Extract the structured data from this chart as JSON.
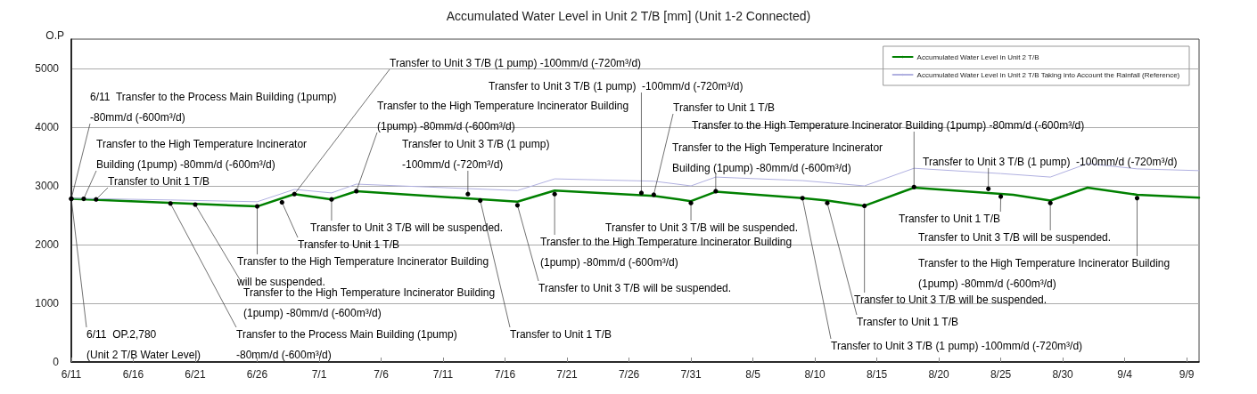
{
  "chart_data": {
    "type": "line",
    "title": "Accumulated Water Level in Unit 2 T/B [mm] (Unit 1-2 Connected)",
    "ylabel": "O.P",
    "series": [
      {
        "name": "Accumulated Water Level in Unit 2 T/B",
        "color": "#008000",
        "x": [
          "--06-11",
          "--06-26",
          "--06-29",
          "--07-02",
          "--07-04",
          "--07-17",
          "--07-20",
          "--07-28",
          "--07-31",
          "--08-02",
          "--08-09",
          "--08-11",
          "--08-14",
          "--08-18",
          "--08-26",
          "--08-29",
          "--09-01",
          "--09-05",
          "--09-10"
        ],
        "values": [
          2780,
          2650,
          2860,
          2770,
          2910,
          2730,
          2920,
          2830,
          2740,
          2900,
          2790,
          2750,
          2660,
          2970,
          2850,
          2750,
          2970,
          2850,
          2800
        ]
      },
      {
        "name": "Accumulated Water Level in Unit 2 T/B Taking into Account the Rainfall (Reference)",
        "color": "#b0b0e0",
        "x": [
          "--06-11",
          "--06-19",
          "--06-26",
          "--06-29",
          "--07-02",
          "--07-04",
          "--07-17",
          "--07-20",
          "--07-28",
          "--07-31",
          "--08-02",
          "--08-09",
          "--08-14",
          "--08-18",
          "--08-25",
          "--08-29",
          "--09-01",
          "--09-05",
          "--09-10"
        ],
        "values": [
          2790,
          2760,
          2730,
          2940,
          2880,
          3030,
          2920,
          3120,
          3080,
          3000,
          3150,
          3090,
          3000,
          3300,
          3210,
          3150,
          3380,
          3290,
          3260
        ]
      }
    ],
    "xlim": [
      "--06-11",
      "--09-10"
    ],
    "xticks": [
      {
        "value": "--06-11",
        "label": "6/11"
      },
      {
        "value": "--06-16",
        "label": "6/16"
      },
      {
        "value": "--06-21",
        "label": "6/21"
      },
      {
        "value": "--06-26",
        "label": "6/26"
      },
      {
        "value": "--07-01",
        "label": "7/1"
      },
      {
        "value": "--07-06",
        "label": "7/6"
      },
      {
        "value": "--07-11",
        "label": "7/11"
      },
      {
        "value": "--07-16",
        "label": "7/16"
      },
      {
        "value": "--07-21",
        "label": "7/21"
      },
      {
        "value": "--07-26",
        "label": "7/26"
      },
      {
        "value": "--07-31",
        "label": "7/31"
      },
      {
        "value": "--08-05",
        "label": "8/5"
      },
      {
        "value": "--08-10",
        "label": "8/10"
      },
      {
        "value": "--08-15",
        "label": "8/15"
      },
      {
        "value": "--08-20",
        "label": "8/20"
      },
      {
        "value": "--08-25",
        "label": "8/25"
      },
      {
        "value": "--08-30",
        "label": "8/30"
      },
      {
        "value": "--09-04",
        "label": "9/4"
      },
      {
        "value": "--09-09",
        "label": "9/9"
      }
    ],
    "ylim": [
      0,
      5500
    ],
    "yticks": [
      0,
      1000,
      2000,
      3000,
      4000,
      5000
    ],
    "grid": "y",
    "legend": "top right",
    "marker": "none",
    "line_style": "solid",
    "annotations": [
      {
        "text": "Transfer to Unit 3 T/B (1 pump)\n-100mm/d (-720m³/d)",
        "x": "--07-13",
        "y": 2860
      },
      {
        "text": "Transfer to Unit 3 T/B (1 pump)  -100mm/d (-720m³/d)",
        "x": "--08-24",
        "y": 2950
      },
      {
        "text": "Transfer to Unit 3 T/B (1 pump)  -100mm/d (-720m³/d)",
        "x": "--07-27",
        "y": 2880
      },
      {
        "text": "Transfer to Unit 3 T/B (1 pump) -100mm/d (-720m³/d)",
        "x": "--06-29",
        "y": 2860
      },
      {
        "text": "Transfer to Unit 3 T/B (1 pump) -100mm/d (-720m³/d)",
        "x": "--08-09",
        "y": 2790
      },
      {
        "text": "Transfer to Unit 1 T/B",
        "x": "--06-13",
        "y": 2770
      },
      {
        "text": "Transfer to Unit 1 T/B",
        "x": "--06-28",
        "y": 2720
      },
      {
        "text": "Transfer to Unit 1 T/B",
        "x": "--08-25",
        "y": 2820
      },
      {
        "text": "Transfer to Unit 1 T/B",
        "x": "--07-28",
        "y": 2850
      },
      {
        "text": "Transfer to Unit 1 T/B",
        "x": "--08-11",
        "y": 2710
      },
      {
        "text": "Transfer to Unit 1 T/B",
        "x": "--07-14",
        "y": 2750
      },
      {
        "text": "Transfer to Unit 3 T/B will be suspended.",
        "x": "--07-02",
        "y": 2770
      },
      {
        "text": "Transfer to Unit 3 T/B will be suspended.",
        "x": "--07-31",
        "y": 2710
      },
      {
        "text": "Transfer to Unit 3 T/B will be suspended.",
        "x": "--08-29",
        "y": 2710
      },
      {
        "text": "Transfer to Unit 3 T/B will be suspended.",
        "x": "--07-17",
        "y": 2670
      },
      {
        "text": "Transfer to Unit 3 T/B will be suspended.",
        "x": "--08-14",
        "y": 2660
      },
      {
        "text": "Transfer to the High Temperature Incinerator\nBuilding (1pump) -80mm/d (-600m³/d)",
        "x": "--06-12",
        "y": 2780
      },
      {
        "text": "Transfer to the High Temperature Incinerator\nBuilding (1pump) -80mm/d (-600m³/d)",
        "x": "--08-02",
        "y": 2910
      },
      {
        "text": "Transfer to the High Temperature Incinerator Building\n(1pump) -80mm/d (-600m³/d)",
        "x": "--07-04",
        "y": 2910
      },
      {
        "text": "Transfer to the High Temperature Incinerator Building\n(1pump) -80mm/d (-600m³/d)",
        "x": "--07-20",
        "y": 2860
      },
      {
        "text": "Transfer to the High Temperature Incinerator Building (1pump) -80mm/d (-600m³/d)",
        "x": "--08-18",
        "y": 2980
      },
      {
        "text": "Transfer to the High Temperature Incinerator Building\n(1pump) -80mm/d (-600m³/d)",
        "x": "--09-05",
        "y": 2790
      },
      {
        "text": "Transfer to the High Temperature Incinerator Building\n(1pump) -80mm/d (-600m³/d)",
        "x": "--06-21",
        "y": 2680
      },
      {
        "text": "6/11  OP.2,780\n(Unit 2 T/B Water Level)",
        "x": "--06-11",
        "y": 2780
      },
      {
        "text": "6/11  Transfer to the Process Main Building (1pump)\n-80mm/d (-600m³/d)",
        "x": "--06-11",
        "y": 2780
      },
      {
        "text": "Transfer to the Process Main Building (1pump)\n-80mm/d (-600m³/d)",
        "x": "--06-19",
        "y": 2700
      },
      {
        "text": "Transfer to the High Temperature Incinerator Building\nwill be suspended.",
        "x": "--06-26",
        "y": 2650
      }
    ]
  }
}
